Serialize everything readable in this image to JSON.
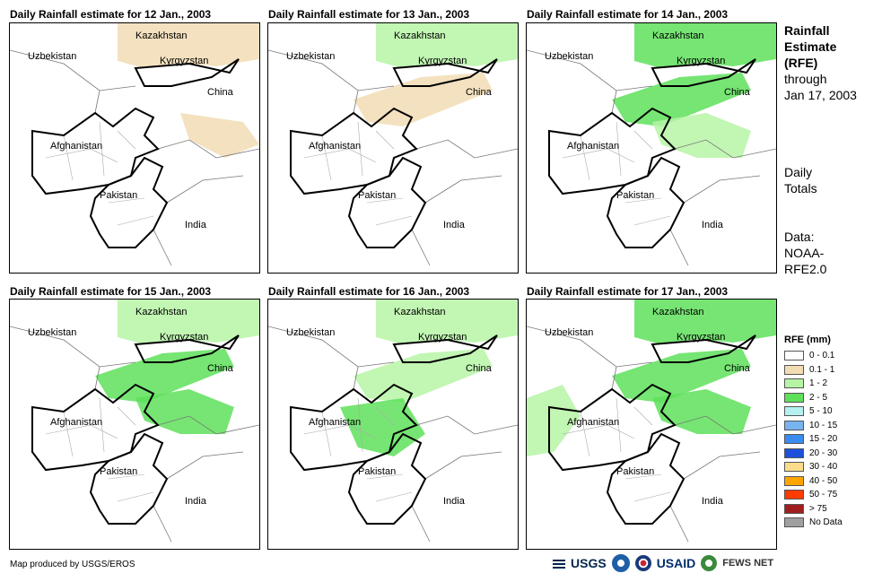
{
  "panels": [
    {
      "title": "Daily Rainfall estimate for 12 Jan., 2003"
    },
    {
      "title": "Daily Rainfall estimate for 13 Jan., 2003"
    },
    {
      "title": "Daily Rainfall estimate for 14 Jan., 2003"
    },
    {
      "title": "Daily Rainfall estimate for 15 Jan., 2003"
    },
    {
      "title": "Daily Rainfall estimate for 16 Jan., 2003"
    },
    {
      "title": "Daily Rainfall estimate for 17 Jan., 2003"
    }
  ],
  "country_labels": {
    "kazakhstan": "Kazakhstan",
    "uzbekistan": "Uzbekistan",
    "kyrgyzstan": "Kyrgyzstan",
    "china": "China",
    "afghanistan": "Afghanistan",
    "pakistan": "Pakistan",
    "india": "India"
  },
  "side_text": {
    "line1": "Rainfall",
    "line2": "Estimate",
    "line3": "(RFE)",
    "line4": "through",
    "line5": "Jan 17, 2003",
    "totals1": "Daily",
    "totals2": "Totals",
    "data1": "Data:",
    "data2": "NOAA-",
    "data3": "RFE2.0"
  },
  "legend": {
    "title": "RFE (mm)",
    "items": [
      {
        "label": "0 - 0.1",
        "color": "#ffffff"
      },
      {
        "label": "0.1 - 1",
        "color": "#f2dcb4"
      },
      {
        "label": "1 - 2",
        "color": "#b6f5a6"
      },
      {
        "label": "2 - 5",
        "color": "#5ee05a"
      },
      {
        "label": "5 - 10",
        "color": "#b4f0f0"
      },
      {
        "label": "10 - 15",
        "color": "#78b4f0"
      },
      {
        "label": "15 - 20",
        "color": "#3c8cf0"
      },
      {
        "label": "20 - 30",
        "color": "#1e50dc"
      },
      {
        "label": "30 - 40",
        "color": "#fadc8c"
      },
      {
        "label": "40 - 50",
        "color": "#ffa500"
      },
      {
        "label": "50 - 75",
        "color": "#ff3c00"
      },
      {
        "label": "> 75",
        "color": "#a01e1e"
      },
      {
        "label": "No Data",
        "color": "#a0a0a0"
      }
    ]
  },
  "credit": "Map produced by USGS/EROS",
  "logos": {
    "usgs": "USGS",
    "usaid": "USAID",
    "fews": "FEWS NET"
  },
  "rain_levels": [
    [
      {
        "area": "kaz",
        "level": 1
      },
      {
        "area": "china",
        "level": 1
      }
    ],
    [
      {
        "area": "kaz",
        "level": 2
      },
      {
        "area": "north",
        "level": 1
      }
    ],
    [
      {
        "area": "kaz",
        "level": 3
      },
      {
        "area": "north",
        "level": 3
      },
      {
        "area": "ne",
        "level": 2
      }
    ],
    [
      {
        "area": "kaz",
        "level": 2
      },
      {
        "area": "north",
        "level": 3
      },
      {
        "area": "ne",
        "level": 3
      }
    ],
    [
      {
        "area": "kaz",
        "level": 2
      },
      {
        "area": "north",
        "level": 2
      },
      {
        "area": "center",
        "level": 3
      }
    ],
    [
      {
        "area": "kaz",
        "level": 3
      },
      {
        "area": "north",
        "level": 3
      },
      {
        "area": "ne",
        "level": 3
      },
      {
        "area": "west",
        "level": 2
      }
    ]
  ]
}
